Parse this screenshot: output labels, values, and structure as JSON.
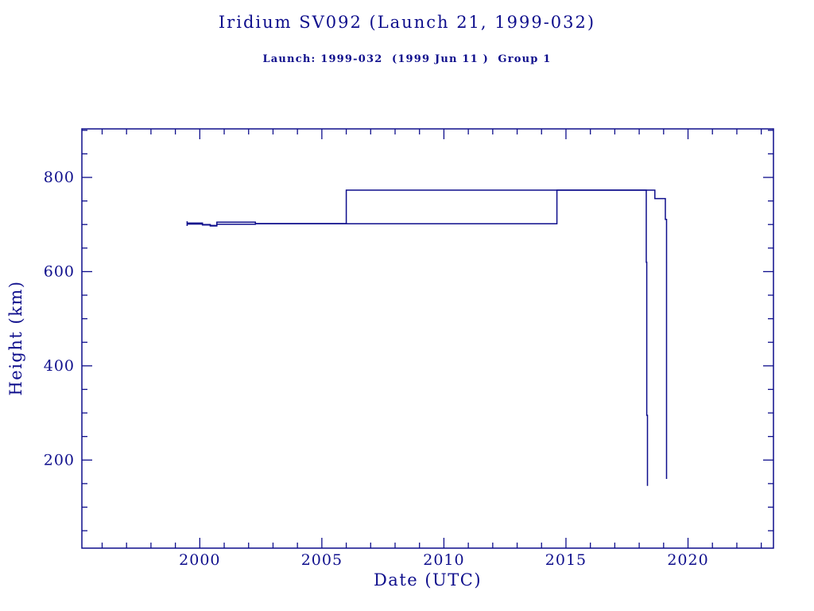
{
  "chart_data": {
    "type": "line",
    "title": "Iridium SV092 (Launch 21, 1999-032)",
    "subtitle": "Launch: 1999-032  (1999 Jun 11 )  Group 1",
    "xlabel": "Date (UTC)",
    "ylabel": "Height (km)",
    "x_range": [
      1995.17,
      2023.5
    ],
    "y_range": [
      13,
      903
    ],
    "x_major_ticks": [
      2000,
      2005,
      2010,
      2015,
      2020
    ],
    "x_major_tick_labels": [
      "2000",
      "2005",
      "2010",
      "2015",
      "2020"
    ],
    "x_minor_tick_step_years": 1,
    "y_major_ticks": [
      200,
      400,
      600,
      800
    ],
    "y_major_tick_labels": [
      "200",
      "400",
      "600",
      "800"
    ],
    "y_minor_tick_step_km": 50,
    "grid": false,
    "legend": "none",
    "ink_color": "#0e0e8c",
    "background_color": "#ffffff",
    "series": [
      {
        "name": "apogee_height_km",
        "points": [
          [
            1999.48,
            703
          ],
          [
            2000.11,
            703
          ],
          [
            2000.11,
            700
          ],
          [
            2000.43,
            700
          ],
          [
            2000.43,
            698
          ],
          [
            2000.7,
            698
          ],
          [
            2000.7,
            705
          ],
          [
            2002.28,
            705
          ],
          [
            2002.28,
            702
          ],
          [
            2006.0,
            702
          ],
          [
            2006.0,
            773
          ],
          [
            2018.64,
            773
          ],
          [
            2018.64,
            755
          ],
          [
            2019.07,
            755
          ],
          [
            2019.07,
            711
          ],
          [
            2019.12,
            711
          ],
          [
            2019.12,
            160
          ]
        ]
      },
      {
        "name": "perigee_height_km",
        "points": [
          [
            1999.48,
            701
          ],
          [
            2000.11,
            701
          ],
          [
            2000.11,
            699
          ],
          [
            2000.43,
            699
          ],
          [
            2000.43,
            697
          ],
          [
            2000.7,
            697
          ],
          [
            2000.7,
            700.5
          ],
          [
            2002.28,
            700.5
          ],
          [
            2002.28,
            701.5
          ],
          [
            2014.63,
            701.5
          ],
          [
            2014.63,
            773
          ],
          [
            2018.29,
            773
          ],
          [
            2018.29,
            620
          ],
          [
            2018.31,
            620
          ],
          [
            2018.31,
            295
          ],
          [
            2018.34,
            295
          ],
          [
            2018.34,
            145
          ]
        ]
      },
      {
        "name": "launch_epoch_marker",
        "points": [
          [
            1999.48,
            697
          ],
          [
            1999.48,
            707
          ]
        ]
      }
    ]
  }
}
